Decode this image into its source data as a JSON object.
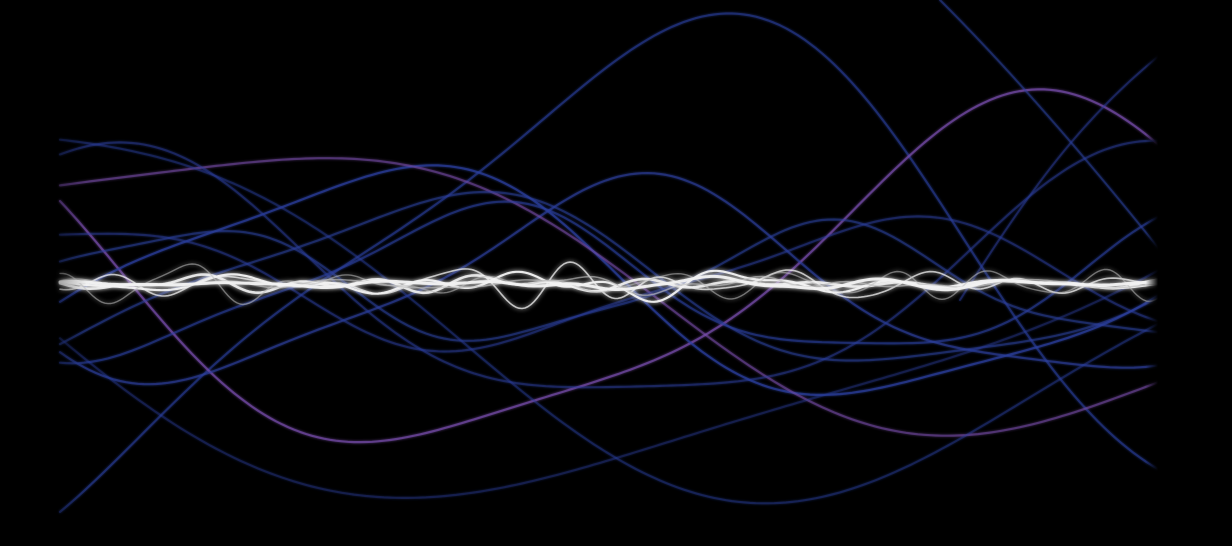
{
  "scene": {
    "background": "#000000",
    "blue_wave_color": "#2b3f9e",
    "violet_highlight_color": "#7b4fb0",
    "white_wave_color": "#f2f2f2",
    "grey_wave_color": "#bdbdbd"
  }
}
